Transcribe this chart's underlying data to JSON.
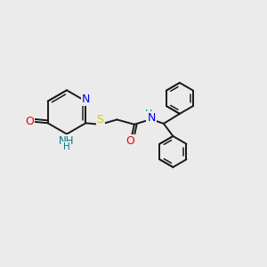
{
  "background_color": "#ebebeb",
  "bond_color": "#1a1a1a",
  "atom_colors": {
    "N": "#0000ee",
    "O": "#ee0000",
    "S": "#cccc00",
    "NH": "#008080"
  },
  "figsize": [
    3.0,
    3.0
  ],
  "dpi": 100
}
